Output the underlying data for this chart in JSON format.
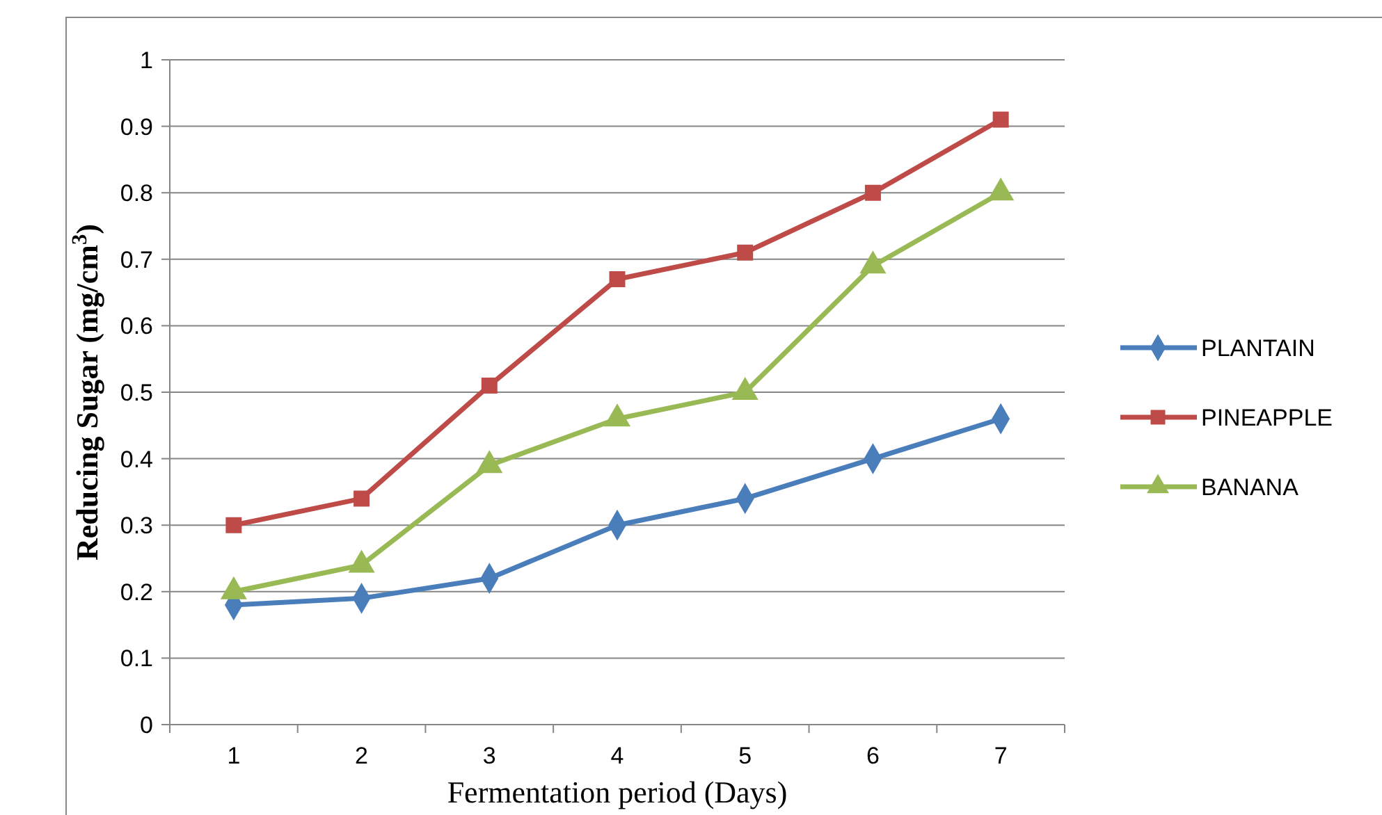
{
  "chart_data": {
    "type": "line",
    "xlabel": "Fermentation period (Days)",
    "ylabel": "Reducing Sugar (mg/cm$^{3}$)",
    "categories": [
      "1",
      "2",
      "3",
      "4",
      "5",
      "6",
      "7"
    ],
    "ylim": [
      0,
      1
    ],
    "yticks": [
      0,
      {
        "value": 0.1,
        "label": "0.1"
      },
      {
        "value": 0.2,
        "label": "0.2"
      },
      {
        "value": 0.3,
        "label": "0.3"
      },
      {
        "value": 0.4,
        "label": "0.4"
      },
      {
        "value": 0.5,
        "label": "0.5"
      },
      {
        "value": 0.6,
        "label": "0.6"
      },
      {
        "value": 0.7,
        "label": "0.7"
      },
      {
        "value": 0.8,
        "label": "0.8"
      },
      {
        "value": 0.9,
        "label": "0.9"
      },
      1
    ],
    "grid": "y",
    "legend": "right",
    "line_style": "solid",
    "series": [
      {
        "name": "PLANTAIN",
        "color": "#4a7ebb",
        "marker": "diamond",
        "values": [
          0.18,
          0.19,
          0.22,
          0.3,
          0.34,
          0.4,
          0.46
        ]
      },
      {
        "name": "PINEAPPLE",
        "color": "#be4b48",
        "marker": "square",
        "values": [
          0.3,
          0.34,
          0.51,
          0.67,
          0.71,
          0.8,
          0.91
        ]
      },
      {
        "name": "BANANA",
        "color": "#98b954",
        "marker": "triangle",
        "values": [
          0.2,
          0.24,
          0.39,
          0.46,
          0.5,
          0.69,
          0.8
        ]
      }
    ]
  }
}
